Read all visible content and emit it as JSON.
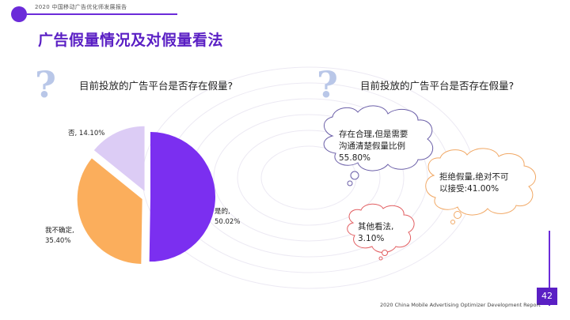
{
  "header": {
    "report_title": "2020 中国移动广告优化师发展报告"
  },
  "page_title": "广告假量情况及对假量看法",
  "left_panel": {
    "question": "目前投放的广告平台是否存在假量?"
  },
  "right_panel": {
    "question": "目前投放的广告平台是否存在假量?",
    "clouds": [
      {
        "text_line1": "存在合理,但是需要",
        "text_line2": "沟通清楚假量比例",
        "text_line3": "55.80%",
        "value": 55.8
      },
      {
        "text_line1": "拒绝假量,绝对不可",
        "text_line2": "以接受:41.00%",
        "value": 41.0
      },
      {
        "text_line1": "其他看法,",
        "text_line2": "3.10%",
        "value": 3.1
      }
    ]
  },
  "chart_data": {
    "type": "pie",
    "title": "目前投放的广告平台是否存在假量?",
    "slices": [
      {
        "label": "是的,",
        "value": 50.02,
        "value_label": "50.02%",
        "color": "#7b2ff0"
      },
      {
        "label": "我不确定,",
        "value": 35.4,
        "value_label": "35.40%",
        "color": "#fbae5c"
      },
      {
        "label": "否,",
        "value": 14.1,
        "value_label": "14.10%",
        "color": "#dcccf5"
      }
    ]
  },
  "footer": {
    "report_title_en": "2020 China Mobile Advertising Optimizer Development Report",
    "page_number": "42"
  }
}
